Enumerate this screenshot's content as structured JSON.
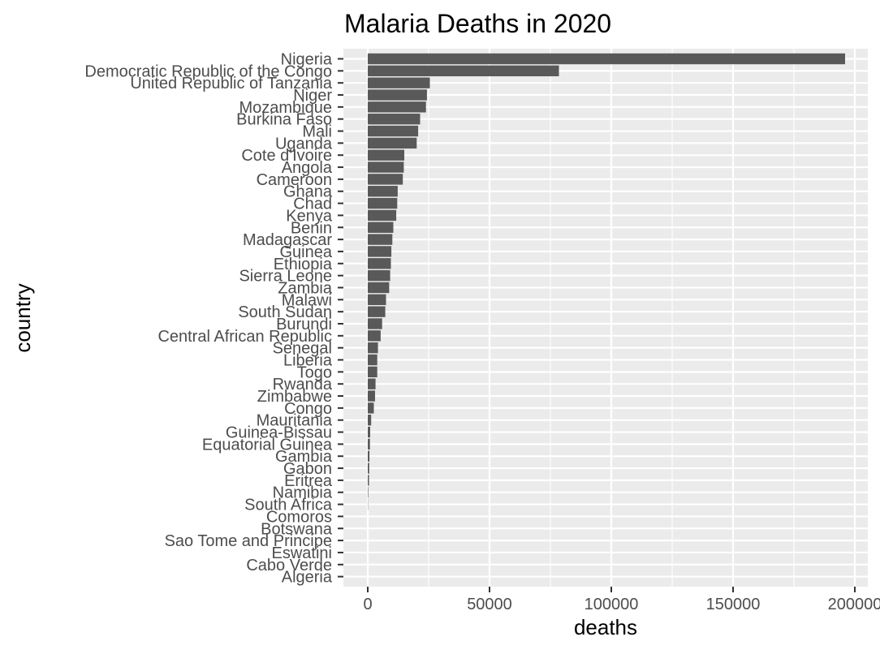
{
  "chart_data": {
    "type": "bar",
    "orientation": "horizontal",
    "title": "Malaria Deaths in 2020",
    "xlabel": "deaths",
    "ylabel": "country",
    "xlim": [
      -10000,
      205000
    ],
    "x_ticks": [
      0,
      50000,
      100000,
      150000,
      200000
    ],
    "x_tick_labels": [
      "0",
      "50000",
      "100000",
      "150000",
      "200000"
    ],
    "grid": true,
    "legend": "none",
    "bar_color": "#595959",
    "panel_color": "#ebebeb",
    "categories": [
      "Nigeria",
      "Democratic Republic of the Congo",
      "United Republic of Tanzania",
      "Niger",
      "Mozambique",
      "Burkina Faso",
      "Mali",
      "Uganda",
      "Cote d'Ivoire",
      "Angola",
      "Cameroon",
      "Ghana",
      "Chad",
      "Kenya",
      "Benin",
      "Madagascar",
      "Guinea",
      "Ethiopia",
      "Sierra Leone",
      "Zambia",
      "Malawi",
      "South Sudan",
      "Burundi",
      "Central African Republic",
      "Senegal",
      "Liberia",
      "Togo",
      "Rwanda",
      "Zimbabwe",
      "Congo",
      "Mauritania",
      "Guinea-Bissau",
      "Equatorial Guinea",
      "Gambia",
      "Gabon",
      "Eritrea",
      "Namibia",
      "South Africa",
      "Comoros",
      "Botswana",
      "Sao Tome and Principe",
      "Eswatini",
      "Cabo Verde",
      "Algeria"
    ],
    "values": [
      196000,
      78500,
      25500,
      24300,
      23900,
      21500,
      20700,
      20100,
      15000,
      14800,
      14400,
      12300,
      12100,
      11700,
      10500,
      10100,
      9700,
      9500,
      9200,
      8800,
      7500,
      7200,
      5900,
      5300,
      4200,
      3900,
      3900,
      3200,
      3000,
      2500,
      1400,
      1000,
      900,
      700,
      600,
      500,
      200,
      100,
      0,
      0,
      0,
      0,
      0,
      0
    ]
  }
}
